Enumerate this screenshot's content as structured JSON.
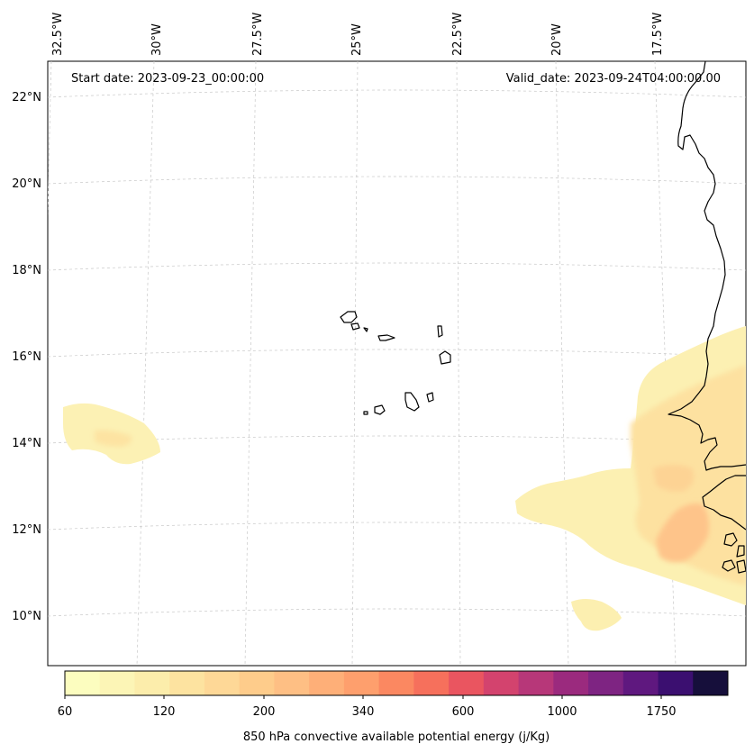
{
  "header": {
    "start_date": "Start date: 2023-09-23_00:00:00",
    "valid_date": "Valid_date: 2023-09-24T04:00:00.00"
  },
  "map": {
    "lon_labels": [
      "32.5°W",
      "30°W",
      "27.5°W",
      "25°W",
      "22.5°W",
      "20°W",
      "17.5°W"
    ],
    "lat_labels": [
      "22°N",
      "20°N",
      "18°N",
      "16°N",
      "14°N",
      "12°N",
      "10°N"
    ]
  },
  "colorbar": {
    "title": "850 hPa convective available potential energy (j/Kg)",
    "tick_labels": [
      "60",
      "120",
      "200",
      "340",
      "600",
      "1000",
      "1750"
    ],
    "colors": [
      "#fcfdbf",
      "#fcf5b6",
      "#fcedab",
      "#fde3a0",
      "#fed897",
      "#fecc8b",
      "#febf84",
      "#feaf78",
      "#fe9f6d",
      "#fb8861",
      "#f6705c",
      "#ea5560",
      "#d3436e",
      "#b73779",
      "#9b2a7e",
      "#7e2482",
      "#5f187f",
      "#3b0f70",
      "#160f3b"
    ]
  }
}
